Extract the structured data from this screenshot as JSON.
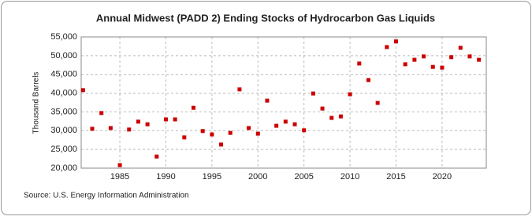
{
  "chart_data": {
    "type": "scatter",
    "title": "Annual Midwest (PADD 2) Ending Stocks of Hydrocarbon Gas Liquids",
    "y_label": "Thousand Barrels",
    "source": "Source: U.S. Energy Information Administration",
    "x": [
      1981,
      1982,
      1983,
      1984,
      1985,
      1986,
      1987,
      1988,
      1989,
      1990,
      1991,
      1992,
      1993,
      1994,
      1995,
      1996,
      1997,
      1998,
      1999,
      2000,
      2001,
      2002,
      2003,
      2004,
      2005,
      2006,
      2007,
      2008,
      2009,
      2010,
      2011,
      2012,
      2013,
      2014,
      2015,
      2016,
      2017,
      2018,
      2019,
      2020,
      2021,
      2022,
      2023,
      2024
    ],
    "series": [
      {
        "name": "Ending Stocks",
        "color": "#cc0000",
        "values": [
          40800,
          30500,
          34700,
          30700,
          20800,
          30300,
          32400,
          31700,
          23100,
          33000,
          33000,
          28200,
          36100,
          29900,
          29000,
          26300,
          29400,
          41000,
          30700,
          29200,
          38000,
          31300,
          32400,
          31700,
          30100,
          39900,
          35900,
          33400,
          33800,
          39700,
          47900,
          43500,
          37400,
          52300,
          53800,
          47700,
          48900,
          49800,
          47000,
          46800,
          49600,
          52100,
          49800,
          48900
        ]
      }
    ],
    "xlim": [
      1980.8,
      2024.8
    ],
    "xticks": [
      1985,
      1990,
      1995,
      2000,
      2005,
      2010,
      2015,
      2020
    ],
    "ylim": [
      20000,
      55000
    ],
    "yticks": [
      {
        "value": 20000,
        "label": "20,000"
      },
      {
        "value": 25000,
        "label": "25,000"
      },
      {
        "value": 30000,
        "label": "30,000"
      },
      {
        "value": 35000,
        "label": "35,000"
      },
      {
        "value": 40000,
        "label": "40,000"
      },
      {
        "value": 45000,
        "label": "45,000"
      },
      {
        "value": 50000,
        "label": "50,000"
      },
      {
        "value": 55000,
        "label": "55,000"
      }
    ],
    "grid": true
  }
}
